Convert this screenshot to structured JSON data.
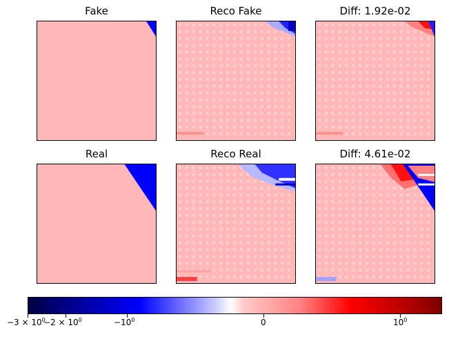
{
  "chart_data": {
    "type": "heatmap",
    "panels": [
      {
        "title": "Fake"
      },
      {
        "title": "Reco Fake"
      },
      {
        "title": "Diff: 1.92e-02"
      },
      {
        "title": "Real"
      },
      {
        "title": "Reco Real"
      },
      {
        "title": "Diff: 4.61e-02"
      }
    ],
    "colormap": "seismic",
    "colorbar": {
      "scale": "symlog",
      "range": [
        -3,
        1.6
      ],
      "ticks": [
        {
          "base": "−3 × 10",
          "exp": "0"
        },
        {
          "base": "−2 × 10",
          "exp": "0"
        },
        {
          "base": "−10",
          "exp": "0"
        },
        {
          "base": "0",
          "exp": ""
        },
        {
          "base": "10",
          "exp": "0"
        }
      ]
    },
    "colors": {
      "background": "#ffb7b7",
      "blue": "#0000ff",
      "red": "#ff0000"
    }
  }
}
